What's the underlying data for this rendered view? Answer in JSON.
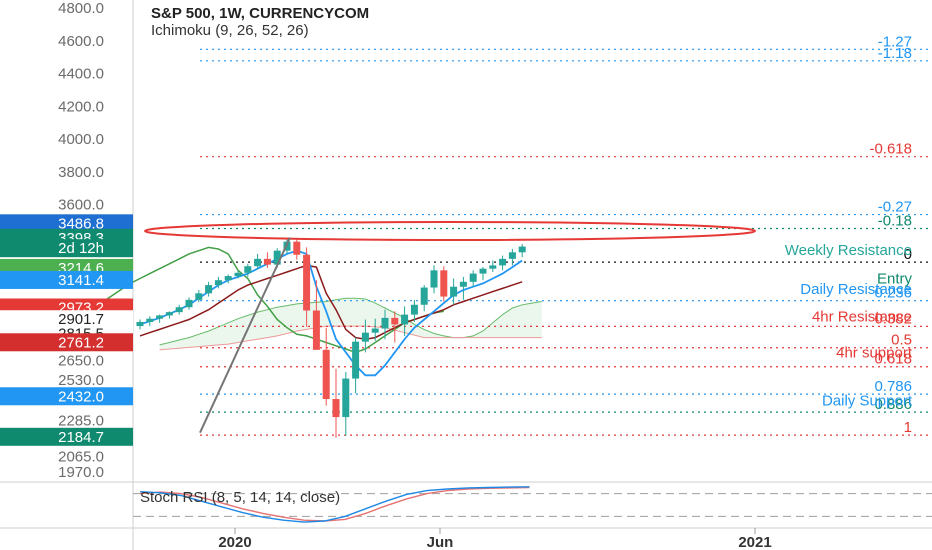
{
  "chart_data": {
    "type": "candlestick",
    "title": "S&P 500, 1W, CURRENCYCOM",
    "subtitle": "Ichimoku (9, 26, 52, 26)",
    "ylim": [
      1970,
      4800
    ],
    "y_ticks": [
      "4800.0",
      "4600.0",
      "4400.0",
      "4200.0",
      "4000.0",
      "3800.0",
      "3600.0",
      "2650.0",
      "2530.0",
      "2285.0",
      "2065.0",
      "1970.0"
    ],
    "x_ticks": [
      "2020",
      "Jun",
      "2021"
    ],
    "price_badges": [
      {
        "label": "3486.8",
        "value": 3486.8,
        "color": "#1e6fd1"
      },
      {
        "label": "3398.3",
        "value": 3398.3,
        "color": "#0f8a6e"
      },
      {
        "label": "2d 12h",
        "value": 3335,
        "color": "#0f8a6e"
      },
      {
        "label": "3214.6",
        "value": 3214.6,
        "color": "#4caf50"
      },
      {
        "label": "3141.4",
        "value": 3141.4,
        "color": "#2196f3"
      },
      {
        "label": "2973.2",
        "value": 2973.2,
        "color": "#e53935"
      },
      {
        "label": "2901.7",
        "value": 2901.7,
        "color": "#ffffff"
      },
      {
        "label": "2815.5",
        "value": 2815.5,
        "color": "#ffffff"
      },
      {
        "label": "2761.2",
        "value": 2761.2,
        "color": "#d32f2f"
      },
      {
        "label": "2432.0",
        "value": 2432.0,
        "color": "#2196f3"
      },
      {
        "label": "2184.7",
        "value": 2184.7,
        "color": "#0f8a6e"
      }
    ],
    "fib_levels": [
      {
        "label": "-1.27",
        "value": 4548,
        "color": "#2196f3"
      },
      {
        "label": "-1.18",
        "value": 4478,
        "color": "#2196f3"
      },
      {
        "label": "-0.618",
        "value": 3893,
        "color": "#e53935"
      },
      {
        "label": "-0.27",
        "value": 3540,
        "color": "#2196f3"
      },
      {
        "label": "-0.18",
        "value": 3455,
        "color": "#0f8a6e"
      },
      {
        "label": "0",
        "value": 3250,
        "color": "#111111"
      },
      {
        "label": "0.236",
        "value": 3015,
        "color": "#2196f3"
      },
      {
        "label": "0.382",
        "value": 2858,
        "color": "#e53935"
      },
      {
        "label": "0.5",
        "value": 2728,
        "color": "#e53935"
      },
      {
        "label": "0.618",
        "value": 2612,
        "color": "#e53935"
      },
      {
        "label": "0.786",
        "value": 2445,
        "color": "#2196f3"
      },
      {
        "label": "0.886",
        "value": 2335,
        "color": "#0f8a6e"
      },
      {
        "label": "1",
        "value": 2195,
        "color": "#e53935"
      }
    ],
    "annotations": [
      {
        "text": "Weekly Resistance",
        "value": 3325,
        "color": "#26a69a"
      },
      {
        "text": "Entry",
        "value": 3150,
        "color": "#0f8a6e"
      },
      {
        "text": "Daily Resistance",
        "value": 3085,
        "color": "#2196f3"
      },
      {
        "text": "4hr Resistance",
        "value": 2918,
        "color": "#e53935"
      },
      {
        "text": "4hr support",
        "value": 2700,
        "color": "#e53935"
      },
      {
        "text": "Daily Support",
        "value": 2405,
        "color": "#2196f3"
      }
    ],
    "candles": [
      {
        "o": 2860,
        "h": 2900,
        "l": 2840,
        "c": 2885
      },
      {
        "o": 2885,
        "h": 2920,
        "l": 2860,
        "c": 2905
      },
      {
        "o": 2905,
        "h": 2930,
        "l": 2880,
        "c": 2925
      },
      {
        "o": 2925,
        "h": 2950,
        "l": 2905,
        "c": 2945
      },
      {
        "o": 2945,
        "h": 2990,
        "l": 2930,
        "c": 2975
      },
      {
        "o": 2975,
        "h": 3035,
        "l": 2960,
        "c": 3020
      },
      {
        "o": 3020,
        "h": 3080,
        "l": 3005,
        "c": 3060
      },
      {
        "o": 3060,
        "h": 3130,
        "l": 3040,
        "c": 3110
      },
      {
        "o": 3110,
        "h": 3160,
        "l": 3090,
        "c": 3140
      },
      {
        "o": 3140,
        "h": 3175,
        "l": 3120,
        "c": 3165
      },
      {
        "o": 3165,
        "h": 3200,
        "l": 3150,
        "c": 3185
      },
      {
        "o": 3185,
        "h": 3240,
        "l": 3160,
        "c": 3225
      },
      {
        "o": 3225,
        "h": 3300,
        "l": 3205,
        "c": 3270
      },
      {
        "o": 3270,
        "h": 3310,
        "l": 3215,
        "c": 3235
      },
      {
        "o": 3235,
        "h": 3335,
        "l": 3215,
        "c": 3320
      },
      {
        "o": 3320,
        "h": 3395,
        "l": 3300,
        "c": 3375
      },
      {
        "o": 3375,
        "h": 3398,
        "l": 3265,
        "c": 3295
      },
      {
        "o": 3295,
        "h": 3340,
        "l": 2855,
        "c": 2955
      },
      {
        "o": 2955,
        "h": 3140,
        "l": 2735,
        "c": 2715
      },
      {
        "o": 2715,
        "h": 2850,
        "l": 2375,
        "c": 2415
      },
      {
        "o": 2415,
        "h": 2600,
        "l": 2180,
        "c": 2305
      },
      {
        "o": 2305,
        "h": 2580,
        "l": 2190,
        "c": 2540
      },
      {
        "o": 2540,
        "h": 2790,
        "l": 2450,
        "c": 2765
      },
      {
        "o": 2765,
        "h": 2900,
        "l": 2700,
        "c": 2820
      },
      {
        "o": 2820,
        "h": 2905,
        "l": 2770,
        "c": 2845
      },
      {
        "o": 2845,
        "h": 2960,
        "l": 2780,
        "c": 2910
      },
      {
        "o": 2910,
        "h": 2950,
        "l": 2760,
        "c": 2870
      },
      {
        "o": 2870,
        "h": 2980,
        "l": 2800,
        "c": 2930
      },
      {
        "o": 2930,
        "h": 3020,
        "l": 2885,
        "c": 2990
      },
      {
        "o": 2990,
        "h": 3110,
        "l": 2950,
        "c": 3095
      },
      {
        "o": 3095,
        "h": 3230,
        "l": 3060,
        "c": 3200
      },
      {
        "o": 3200,
        "h": 3225,
        "l": 3010,
        "c": 3040
      },
      {
        "o": 3040,
        "h": 3150,
        "l": 2990,
        "c": 3100
      },
      {
        "o": 3100,
        "h": 3160,
        "l": 3020,
        "c": 3130
      },
      {
        "o": 3130,
        "h": 3200,
        "l": 3100,
        "c": 3180
      },
      {
        "o": 3180,
        "h": 3220,
        "l": 3140,
        "c": 3210
      },
      {
        "o": 3210,
        "h": 3260,
        "l": 3190,
        "c": 3230
      },
      {
        "o": 3230,
        "h": 3290,
        "l": 3200,
        "c": 3270
      },
      {
        "o": 3270,
        "h": 3330,
        "l": 3230,
        "c": 3310
      },
      {
        "o": 3310,
        "h": 3360,
        "l": 3280,
        "c": 3345
      }
    ],
    "ichimoku": {
      "conversion": [
        2870,
        2890,
        2910,
        2935,
        2960,
        2990,
        3030,
        3070,
        3110,
        3140,
        3160,
        3180,
        3210,
        3240,
        3270,
        3300,
        3320,
        3300,
        3100,
        2950,
        2780,
        2700,
        2620,
        2560,
        2560,
        2620,
        2700,
        2780,
        2850,
        2900,
        2950,
        3000,
        3050,
        3080,
        3100,
        3120,
        3150,
        3180,
        3220,
        3260
      ],
      "base": [
        2800,
        2820,
        2840,
        2860,
        2880,
        2900,
        2930,
        2960,
        3000,
        3040,
        3080,
        3110,
        3130,
        3150,
        3170,
        3190,
        3210,
        3230,
        3220,
        3060,
        2960,
        2840,
        2790,
        2780,
        2790,
        2820,
        2850,
        2880,
        2900,
        2920,
        2940,
        2960,
        2990,
        3010,
        3030,
        3050,
        3070,
        3090,
        3110,
        3130
      ],
      "lagging": [
        2860,
        2880,
        2920,
        2960,
        3000,
        3040,
        3080,
        3120,
        3150,
        3180,
        3210,
        3240,
        3270,
        3300,
        3320,
        3340,
        3330,
        3300,
        3200,
        3150,
        3050,
        2980,
        2900,
        2850,
        2810,
        2800,
        2780,
        2760,
        2740,
        2720,
        2700,
        2720,
        2760,
        2800,
        2840,
        2880,
        2900,
        2920,
        2940,
        2950
      ],
      "span_a": [
        2745,
        2760,
        2775,
        2790,
        2810,
        2830,
        2855,
        2880,
        2905,
        2925,
        2945,
        2960,
        2975,
        2985,
        2995,
        3000,
        3005,
        3010,
        3020,
        3030,
        3030,
        3025,
        3000,
        2970,
        2940,
        2910,
        2870,
        2840,
        2815,
        2800,
        2790,
        2790,
        2800,
        2830,
        2880,
        2930,
        2970,
        2990,
        3000,
        3010
      ],
      "span_b": [
        2715,
        2720,
        2725,
        2730,
        2735,
        2740,
        2745,
        2750,
        2760,
        2770,
        2780,
        2790,
        2800,
        2815,
        2830,
        2840,
        2850,
        2860,
        2860,
        2860,
        2860,
        2860,
        2855,
        2850,
        2835,
        2820,
        2805,
        2790,
        2790,
        2790,
        2790,
        2790,
        2790,
        2790,
        2790,
        2790,
        2790,
        2790,
        2790,
        2790
      ]
    },
    "stoch_rsi": {
      "label": "Stoch RSI (8, 5, 14, 14, close)",
      "k": [
        85,
        82,
        75,
        60,
        45,
        30,
        18,
        10,
        5,
        8,
        20,
        40,
        60,
        78,
        88,
        92,
        95,
        96,
        97,
        98
      ],
      "d": [
        80,
        84,
        80,
        70,
        55,
        40,
        28,
        18,
        10,
        8,
        12,
        28,
        48,
        66,
        80,
        88,
        92,
        94,
        95,
        96
      ]
    },
    "colors": {
      "bull": "#26a69a",
      "bear": "#ef5350",
      "conversion": "#2196f3",
      "base": "#8b1a1a",
      "lagging": "#43a047",
      "cloud": "#e8f5e9",
      "ellipse": "#e53935"
    }
  }
}
